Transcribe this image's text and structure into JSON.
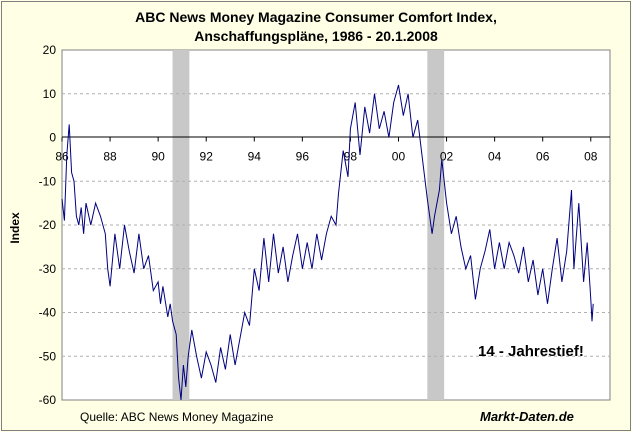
{
  "chart_data": {
    "type": "line",
    "title": "ABC News Money Magazine Consumer Comfort Index,",
    "subtitle": "Anschaffungspläne, 1986 - 20.1.2008",
    "ylabel": "Index",
    "xlabel": "",
    "ylim": [
      -60,
      20
    ],
    "xlim": [
      1986,
      2008.8
    ],
    "y_ticks": [
      "20",
      "10",
      "0",
      "-10",
      "-20",
      "-30",
      "-40",
      "-50",
      "-60"
    ],
    "x_ticks": [
      "86",
      "88",
      "90",
      "92",
      "94",
      "96",
      "98",
      "00",
      "02",
      "04",
      "06",
      "08"
    ],
    "grid": "horizontal dashed",
    "line_color": "#000080",
    "recession_shading": [
      [
        1990.6,
        1991.3
      ],
      [
        2001.2,
        2001.9
      ]
    ],
    "annotation": "14 - Jahrestief!",
    "source": "Quelle: ABC News Money Magazine",
    "brand": "Markt-Daten.de",
    "series": [
      {
        "values": [
          [
            1986.0,
            -14
          ],
          [
            1986.1,
            -19
          ],
          [
            1986.2,
            -4
          ],
          [
            1986.3,
            3
          ],
          [
            1986.4,
            -8
          ],
          [
            1986.5,
            -10
          ],
          [
            1986.6,
            -18
          ],
          [
            1986.7,
            -20
          ],
          [
            1986.8,
            -16
          ],
          [
            1986.9,
            -22
          ],
          [
            1987.0,
            -15
          ],
          [
            1987.2,
            -20
          ],
          [
            1987.4,
            -15
          ],
          [
            1987.6,
            -18
          ],
          [
            1987.8,
            -22
          ],
          [
            1987.9,
            -30
          ],
          [
            1988.0,
            -34
          ],
          [
            1988.2,
            -22
          ],
          [
            1988.4,
            -30
          ],
          [
            1988.6,
            -20
          ],
          [
            1988.8,
            -26
          ],
          [
            1989.0,
            -31
          ],
          [
            1989.2,
            -22
          ],
          [
            1989.4,
            -30
          ],
          [
            1989.6,
            -27
          ],
          [
            1989.8,
            -35
          ],
          [
            1990.0,
            -33
          ],
          [
            1990.1,
            -38
          ],
          [
            1990.2,
            -34
          ],
          [
            1990.4,
            -41
          ],
          [
            1990.5,
            -38
          ],
          [
            1990.6,
            -42
          ],
          [
            1990.75,
            -45
          ],
          [
            1990.85,
            -55
          ],
          [
            1990.95,
            -60
          ],
          [
            1991.05,
            -52
          ],
          [
            1991.15,
            -57
          ],
          [
            1991.25,
            -50
          ],
          [
            1991.4,
            -44
          ],
          [
            1991.6,
            -50
          ],
          [
            1991.8,
            -55
          ],
          [
            1992.0,
            -49
          ],
          [
            1992.2,
            -52
          ],
          [
            1992.4,
            -56
          ],
          [
            1992.6,
            -48
          ],
          [
            1992.8,
            -53
          ],
          [
            1993.0,
            -45
          ],
          [
            1993.2,
            -52
          ],
          [
            1993.4,
            -46
          ],
          [
            1993.6,
            -40
          ],
          [
            1993.8,
            -43
          ],
          [
            1994.0,
            -30
          ],
          [
            1994.2,
            -35
          ],
          [
            1994.4,
            -23
          ],
          [
            1994.6,
            -33
          ],
          [
            1994.8,
            -22
          ],
          [
            1995.0,
            -31
          ],
          [
            1995.2,
            -25
          ],
          [
            1995.4,
            -33
          ],
          [
            1995.6,
            -27
          ],
          [
            1995.8,
            -22
          ],
          [
            1996.0,
            -30
          ],
          [
            1996.2,
            -24
          ],
          [
            1996.4,
            -30
          ],
          [
            1996.6,
            -22
          ],
          [
            1996.8,
            -28
          ],
          [
            1997.0,
            -22
          ],
          [
            1997.2,
            -18
          ],
          [
            1997.4,
            -20
          ],
          [
            1997.5,
            -13
          ],
          [
            1997.7,
            -3
          ],
          [
            1997.9,
            -9
          ],
          [
            1998.0,
            2
          ],
          [
            1998.2,
            8
          ],
          [
            1998.4,
            -4
          ],
          [
            1998.6,
            7
          ],
          [
            1998.8,
            1
          ],
          [
            1999.0,
            10
          ],
          [
            1999.2,
            2
          ],
          [
            1999.4,
            6
          ],
          [
            1999.6,
            0
          ],
          [
            1999.8,
            8
          ],
          [
            2000.0,
            12
          ],
          [
            2000.2,
            5
          ],
          [
            2000.4,
            10
          ],
          [
            2000.6,
            0
          ],
          [
            2000.8,
            4
          ],
          [
            2001.0,
            -5
          ],
          [
            2001.2,
            -14
          ],
          [
            2001.4,
            -22
          ],
          [
            2001.5,
            -18
          ],
          [
            2001.7,
            -12
          ],
          [
            2001.8,
            -5
          ],
          [
            2002.0,
            -15
          ],
          [
            2002.2,
            -22
          ],
          [
            2002.4,
            -18
          ],
          [
            2002.6,
            -25
          ],
          [
            2002.8,
            -30
          ],
          [
            2003.0,
            -27
          ],
          [
            2003.2,
            -37
          ],
          [
            2003.4,
            -30
          ],
          [
            2003.6,
            -26
          ],
          [
            2003.8,
            -21
          ],
          [
            2004.0,
            -30
          ],
          [
            2004.2,
            -24
          ],
          [
            2004.4,
            -30
          ],
          [
            2004.6,
            -24
          ],
          [
            2004.8,
            -27
          ],
          [
            2005.0,
            -31
          ],
          [
            2005.2,
            -25
          ],
          [
            2005.4,
            -33
          ],
          [
            2005.6,
            -28
          ],
          [
            2005.8,
            -36
          ],
          [
            2006.0,
            -30
          ],
          [
            2006.2,
            -38
          ],
          [
            2006.4,
            -30
          ],
          [
            2006.6,
            -23
          ],
          [
            2006.8,
            -33
          ],
          [
            2007.0,
            -26
          ],
          [
            2007.2,
            -12
          ],
          [
            2007.3,
            -30
          ],
          [
            2007.5,
            -15
          ],
          [
            2007.7,
            -33
          ],
          [
            2007.85,
            -24
          ],
          [
            2008.0,
            -37
          ],
          [
            2008.05,
            -42
          ],
          [
            2008.1,
            -38
          ]
        ]
      }
    ]
  }
}
